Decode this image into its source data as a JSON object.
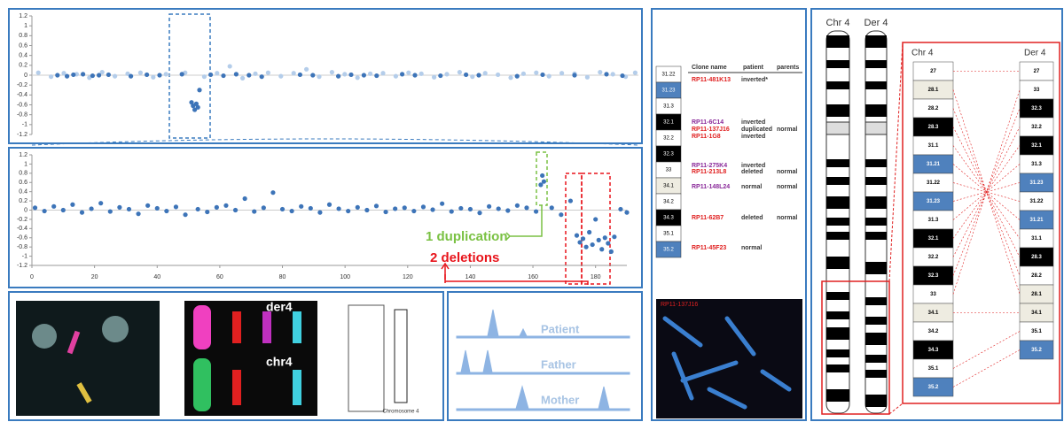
{
  "chart_data": [
    {
      "type": "scatter",
      "xlim": [
        0,
        190
      ],
      "ylim": [
        -1.2,
        1.2
      ],
      "yticks": [
        1.2,
        1,
        0.8,
        0.6,
        0.4,
        0.2,
        0,
        -0.2,
        -0.4,
        -0.6,
        -0.8,
        -1,
        -1.2
      ],
      "series": [
        {
          "color": "#b4cdea",
          "x": [
            2,
            6,
            10,
            14,
            18,
            22,
            26,
            30,
            34,
            38,
            42,
            48,
            54,
            58,
            62,
            66,
            70,
            74,
            78,
            82,
            86,
            90,
            94,
            98,
            102,
            106,
            110,
            114,
            118,
            122,
            126,
            130,
            134,
            138,
            142,
            146,
            150,
            154,
            158,
            162,
            166,
            170,
            174,
            178,
            182,
            186,
            189
          ],
          "values": [
            0.05,
            -0.03,
            0.04,
            0.02,
            -0.05,
            0.06,
            -0.02,
            0.03,
            0.05,
            -0.04,
            0.02,
            0.05,
            -0.03,
            0.04,
            0.18,
            -0.06,
            0.03,
            0.05,
            -0.02,
            0.04,
            0.12,
            -0.03,
            0.06,
            0.02,
            -0.05,
            0.03,
            0.04,
            -0.02,
            0.05,
            0.03,
            -0.04,
            0.02,
            0.06,
            -0.03,
            0.04,
            0.01,
            -0.05,
            0.03,
            0.05,
            -0.02,
            0.04,
            0.03,
            -0.04,
            0.06,
            0.02,
            -0.03,
            0.05
          ]
        },
        {
          "color": "#3d74b8",
          "x": [
            8,
            11,
            13,
            16,
            19,
            21,
            24,
            31,
            36,
            40,
            47,
            50,
            50.5,
            51,
            51.5,
            52,
            52.5,
            56,
            60,
            64,
            68,
            72,
            84,
            88,
            96,
            100,
            104,
            108,
            116,
            120,
            128,
            136,
            140,
            152,
            160,
            170,
            180,
            185
          ],
          "values": [
            0,
            -0.02,
            0.01,
            0.02,
            -0.01,
            0,
            0.01,
            -0.02,
            0.01,
            0,
            0.02,
            -0.55,
            -0.62,
            -0.7,
            -0.58,
            -0.65,
            -0.3,
            0.01,
            -0.01,
            0.02,
            0,
            -0.03,
            0.01,
            0,
            -0.02,
            0.01,
            0,
            -0.01,
            0.02,
            0,
            -0.01,
            0.01,
            0,
            -0.02,
            0.01,
            0,
            0.02,
            -0.01
          ]
        }
      ]
    },
    {
      "type": "scatter",
      "xlim": [
        0,
        190
      ],
      "ylim": [
        -1.2,
        1.2
      ],
      "yticks": [
        1.2,
        1,
        0.8,
        0.6,
        0.4,
        0.2,
        0,
        -0.2,
        -0.4,
        -0.6,
        -0.8,
        -1,
        -1.2
      ],
      "xticks": [
        0,
        20,
        40,
        60,
        80,
        100,
        120,
        140,
        160,
        180
      ],
      "series": [
        {
          "color": "#3d74b8",
          "x": [
            1,
            4,
            7,
            10,
            13,
            16,
            19,
            22,
            25,
            28,
            31,
            34,
            37,
            40,
            43,
            46,
            49,
            53,
            56,
            59,
            62,
            65,
            68,
            71,
            74,
            77,
            80,
            83,
            86,
            89,
            92,
            95,
            98,
            101,
            104,
            107,
            110,
            113,
            116,
            119,
            122,
            125,
            128,
            131,
            134,
            137,
            140,
            143,
            146,
            149,
            152,
            155,
            158,
            161,
            162.5,
            163,
            163.5,
            166,
            169,
            172,
            174,
            175,
            176,
            177,
            178,
            179,
            180,
            181,
            182,
            183,
            184,
            185,
            186,
            188,
            190
          ],
          "values": [
            0.05,
            -0.02,
            0.08,
            0,
            0.12,
            -0.05,
            0.03,
            0.15,
            -0.03,
            0.06,
            0.02,
            -0.08,
            0.1,
            0.04,
            -0.02,
            0.07,
            -0.1,
            0.02,
            -0.04,
            0.06,
            0.1,
            0,
            0.25,
            -0.03,
            0.05,
            0.38,
            0.02,
            -0.02,
            0.08,
            0.04,
            -0.05,
            0.12,
            0.03,
            -0.02,
            0.06,
            0,
            0.09,
            -0.04,
            0.03,
            0.05,
            -0.02,
            0.07,
            0.01,
            0.14,
            -0.03,
            0.04,
            0.02,
            -0.06,
            0.08,
            0.03,
            -0.01,
            0.1,
            0.05,
            -0.03,
            0.55,
            0.75,
            0.62,
            0.05,
            -0.1,
            0.2,
            -0.55,
            -0.7,
            -0.62,
            -0.8,
            -0.48,
            -0.75,
            -0.2,
            -0.65,
            -0.85,
            -0.6,
            -0.72,
            -0.9,
            -0.58,
            0.02,
            -0.05
          ]
        }
      ],
      "annotations": [
        {
          "text": "1 duplication",
          "color": "#7ac143"
        },
        {
          "text": "2 deletions",
          "color": "#e8141b"
        }
      ]
    }
  ],
  "fish": {
    "der": "der4",
    "chr": "chr4",
    "caption": "Chromosome 4",
    "probe": "RP11-137J16"
  },
  "peaks": [
    "Patient",
    "Father",
    "Mother"
  ],
  "table": {
    "bands": [
      {
        "label": "31.22",
        "color": "#ffffff"
      },
      {
        "label": "31.23",
        "color": "#4f81bd"
      },
      {
        "label": "31.3",
        "color": "#ffffff"
      },
      {
        "label": "32.1",
        "color": "#000000"
      },
      {
        "label": "32.2",
        "color": "#ffffff"
      },
      {
        "label": "32.3",
        "color": "#000000"
      },
      {
        "label": "33",
        "color": "#ffffff"
      },
      {
        "label": "34.1",
        "color": "#eeece1"
      },
      {
        "label": "34.2",
        "color": "#ffffff"
      },
      {
        "label": "34.3",
        "color": "#000000"
      },
      {
        "label": "35.1",
        "color": "#ffffff"
      },
      {
        "label": "35.2",
        "color": "#4f81bd"
      }
    ],
    "header": [
      "Clone name",
      "patient",
      "parents"
    ],
    "rows": [
      {
        "clone": "RP11-481K13",
        "color": "#e02020",
        "patient": "inverted*"
      },
      {
        "clone": "RP11-6C14",
        "color": "#8a2a9a",
        "patient": "inverted"
      },
      {
        "clone": "RP11-137J16",
        "color": "#e02020",
        "patient": "duplicated",
        "parents": "normal"
      },
      {
        "clone": "RP11-1G8",
        "color": "#e02020",
        "patient": "inverted"
      },
      {
        "clone": "RP11-275K4",
        "color": "#8a2a9a",
        "patient": "inverted"
      },
      {
        "clone": "RP11-213L8",
        "color": "#e02020",
        "patient": "deleted",
        "parents": "normal"
      },
      {
        "clone": "RP11-148L24",
        "color": "#8a2a9a",
        "patient": "normal",
        "parents": "normal"
      },
      {
        "clone": "RP11-62B7",
        "color": "#e02020",
        "patient": "deleted",
        "parents": "normal"
      },
      {
        "clone": "RP11-45F23",
        "color": "#e02020",
        "patient": "normal"
      }
    ]
  },
  "ideogram": {
    "chr_label": "Chr 4",
    "der_label": "Der 4",
    "chr": [
      {
        "label": "27",
        "color": "#ffffff"
      },
      {
        "label": "28.1",
        "color": "#eeece1"
      },
      {
        "label": "28.2",
        "color": "#ffffff"
      },
      {
        "label": "28.3",
        "color": "#000000"
      },
      {
        "label": "31.1",
        "color": "#ffffff"
      },
      {
        "label": "31.21",
        "color": "#4f81bd"
      },
      {
        "label": "31.22",
        "color": "#ffffff"
      },
      {
        "label": "31.23",
        "color": "#4f81bd"
      },
      {
        "label": "31.3",
        "color": "#ffffff"
      },
      {
        "label": "32.1",
        "color": "#000000"
      },
      {
        "label": "32.2",
        "color": "#ffffff"
      },
      {
        "label": "32.3",
        "color": "#000000"
      },
      {
        "label": "33",
        "color": "#ffffff"
      },
      {
        "label": "34.1",
        "color": "#eeece1"
      },
      {
        "label": "34.2",
        "color": "#ffffff"
      },
      {
        "label": "34.3",
        "color": "#000000"
      },
      {
        "label": "35.1",
        "color": "#ffffff"
      },
      {
        "label": "35.2",
        "color": "#4f81bd"
      }
    ],
    "der": [
      {
        "label": "27",
        "color": "#ffffff"
      },
      {
        "label": "33",
        "color": "#ffffff"
      },
      {
        "label": "32.3",
        "color": "#000000"
      },
      {
        "label": "32.2",
        "color": "#ffffff"
      },
      {
        "label": "32.1",
        "color": "#000000"
      },
      {
        "label": "31.3",
        "color": "#ffffff"
      },
      {
        "label": "31.23",
        "color": "#4f81bd"
      },
      {
        "label": "31.22",
        "color": "#ffffff"
      },
      {
        "label": "31.21",
        "color": "#4f81bd"
      },
      {
        "label": "31.1",
        "color": "#ffffff"
      },
      {
        "label": "28.3",
        "color": "#000000"
      },
      {
        "label": "28.2",
        "color": "#ffffff"
      },
      {
        "label": "28.1",
        "color": "#eeece1"
      },
      {
        "label": "34.1",
        "color": "#eeece1"
      },
      {
        "label": "35.1",
        "color": "#ffffff"
      },
      {
        "label": "35.2",
        "color": "#4f81bd"
      }
    ]
  }
}
